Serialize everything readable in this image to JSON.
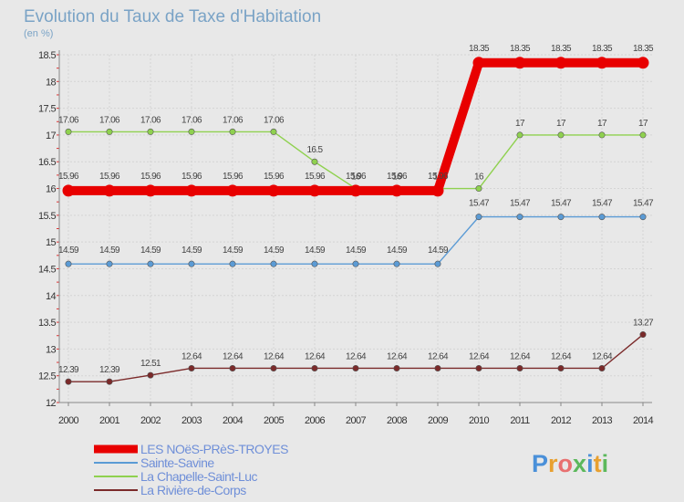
{
  "chart_data": {
    "type": "line",
    "title": "Evolution du Taux de Taxe d'Habitation",
    "subtitle": "(en %)",
    "ylim": [
      12,
      18.5
    ],
    "yticks": [
      "12",
      "12.5",
      "13",
      "13.5",
      "14",
      "14.5",
      "15",
      "15.5",
      "16",
      "16.5",
      "17",
      "17.5",
      "18",
      "18.5"
    ],
    "x": [
      "2000",
      "2001",
      "2002",
      "2003",
      "2004",
      "2005",
      "2006",
      "2007",
      "2008",
      "2009",
      "2010",
      "2011",
      "2012",
      "2013",
      "2014"
    ],
    "series": [
      {
        "name": "LES NOëS-PRèS-TROYES",
        "color": "#e80000",
        "values": [
          15.96,
          15.96,
          15.96,
          15.96,
          15.96,
          15.96,
          15.96,
          15.96,
          15.96,
          15.96,
          18.35,
          18.35,
          18.35,
          18.35,
          18.35
        ],
        "labels": [
          "15.96",
          "15.96",
          "15.96",
          "15.96",
          "15.96",
          "15.96",
          "15.96",
          "15.96",
          "15.96",
          "15.96",
          "18.35",
          "18.35",
          "18.35",
          "18.35",
          "18.35"
        ]
      },
      {
        "name": "Sainte-Savine",
        "color": "#5b9bd5",
        "values": [
          14.59,
          14.59,
          14.59,
          14.59,
          14.59,
          14.59,
          14.59,
          14.59,
          14.59,
          14.59,
          15.47,
          15.47,
          15.47,
          15.47,
          15.47
        ],
        "labels": [
          "14.59",
          "14.59",
          "14.59",
          "14.59",
          "14.59",
          "14.59",
          "14.59",
          "14.59",
          "14.59",
          "14.59",
          "15.47",
          "15.47",
          "15.47",
          "15.47",
          "15.47"
        ]
      },
      {
        "name": "La Chapelle-Saint-Luc",
        "color": "#8fd14f",
        "values": [
          17.06,
          17.06,
          17.06,
          17.06,
          17.06,
          17.06,
          16.5,
          16,
          16,
          16,
          16,
          17,
          17,
          17,
          17
        ],
        "labels": [
          "17.06",
          "17.06",
          "17.06",
          "17.06",
          "17.06",
          "17.06",
          "16.5",
          "16",
          "16",
          "16",
          "16",
          "17",
          "17",
          "17",
          "17"
        ]
      },
      {
        "name": "La Rivière-de-Corps",
        "color": "#7b2a2a",
        "values": [
          12.39,
          12.39,
          12.51,
          12.64,
          12.64,
          12.64,
          12.64,
          12.64,
          12.64,
          12.64,
          12.64,
          12.64,
          12.64,
          12.64,
          13.27
        ],
        "labels": [
          "12.39",
          "12.39",
          "12.51",
          "12.64",
          "12.64",
          "12.64",
          "12.64",
          "12.64",
          "12.64",
          "12.64",
          "12.64",
          "12.64",
          "12.64",
          "12.64",
          "13.27"
        ]
      }
    ]
  },
  "brand": {
    "letters": [
      "P",
      "r",
      "o",
      "x",
      "i",
      "t",
      "i"
    ],
    "colors": [
      "#4a90d9",
      "#e8a030",
      "#e87070",
      "#5cb85c",
      "#4a90d9",
      "#e8a030",
      "#5cb85c"
    ]
  }
}
